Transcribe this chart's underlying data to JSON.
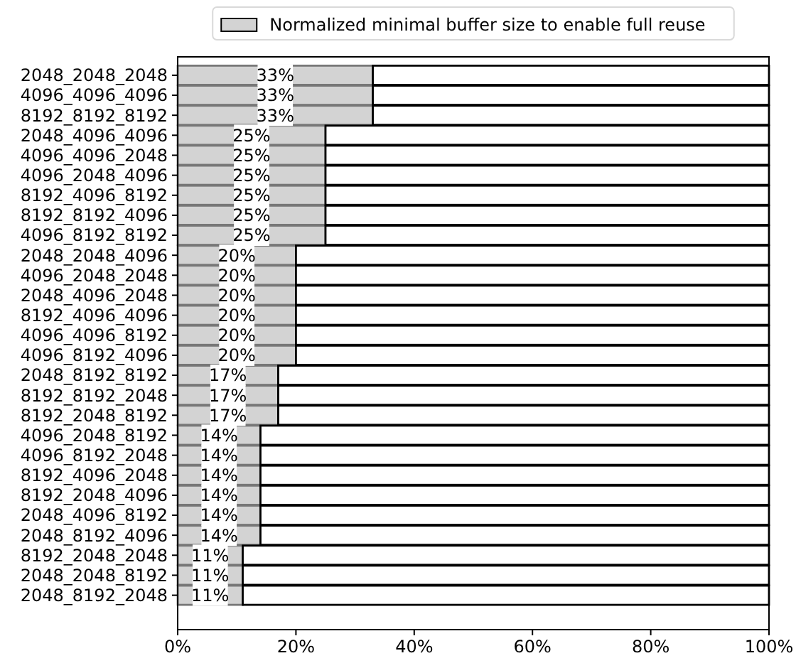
{
  "chart_data": {
    "type": "bar",
    "orientation": "horizontal",
    "stacked": true,
    "categories": [
      "2048_2048_2048",
      "4096_4096_4096",
      "8192_8192_8192",
      "2048_4096_4096",
      "4096_4096_2048",
      "4096_2048_4096",
      "8192_4096_8192",
      "8192_8192_4096",
      "4096_8192_8192",
      "2048_2048_4096",
      "4096_2048_2048",
      "2048_4096_2048",
      "8192_4096_4096",
      "4096_4096_8192",
      "4096_8192_4096",
      "2048_8192_8192",
      "8192_8192_2048",
      "8192_2048_8192",
      "4096_2048_8192",
      "4096_8192_2048",
      "8192_4096_2048",
      "8192_2048_4096",
      "2048_4096_8192",
      "2048_8192_4096",
      "8192_2048_2048",
      "2048_2048_8192",
      "2048_8192_2048"
    ],
    "series": [
      {
        "name": "Normalized minimal buffer size to enable full reuse",
        "color": "#d3d3d3",
        "values": [
          33,
          33,
          33,
          25,
          25,
          25,
          25,
          25,
          25,
          20,
          20,
          20,
          20,
          20,
          20,
          17,
          17,
          17,
          14,
          14,
          14,
          14,
          14,
          14,
          11,
          11,
          11
        ],
        "value_labels": [
          "33%",
          "33%",
          "33%",
          "25%",
          "25%",
          "25%",
          "25%",
          "25%",
          "25%",
          "20%",
          "20%",
          "20%",
          "20%",
          "20%",
          "20%",
          "17%",
          "17%",
          "17%",
          "14%",
          "14%",
          "14%",
          "14%",
          "14%",
          "14%",
          "11%",
          "11%",
          "11%"
        ]
      },
      {
        "color": "#ffffff",
        "values": [
          67,
          67,
          67,
          75,
          75,
          75,
          75,
          75,
          75,
          80,
          80,
          80,
          80,
          80,
          80,
          83,
          83,
          83,
          86,
          86,
          86,
          86,
          86,
          86,
          89,
          89,
          89
        ]
      }
    ],
    "xlim": [
      0,
      100
    ],
    "xticks": [
      {
        "value": 0,
        "label": "0%"
      },
      {
        "value": 20,
        "label": "20%"
      },
      {
        "value": 40,
        "label": "40%"
      },
      {
        "value": 60,
        "label": "60%"
      },
      {
        "value": 80,
        "label": "80%"
      },
      {
        "value": 100,
        "label": "100%"
      }
    ],
    "legend": "top"
  }
}
